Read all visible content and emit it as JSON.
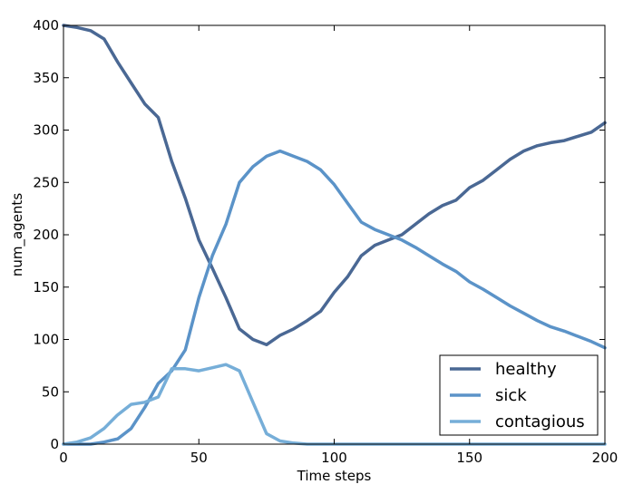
{
  "chart_data": {
    "type": "line",
    "title": "",
    "xlabel": "Time steps",
    "ylabel": "num_agents",
    "xlim": [
      0,
      200
    ],
    "ylim": [
      0,
      400
    ],
    "xticks": [
      0,
      50,
      100,
      150,
      200
    ],
    "yticks": [
      0,
      50,
      100,
      150,
      200,
      250,
      300,
      350,
      400
    ],
    "grid": false,
    "legend_position": "bottom-right",
    "x": [
      0,
      5,
      10,
      15,
      20,
      25,
      30,
      35,
      40,
      45,
      50,
      55,
      60,
      65,
      70,
      75,
      80,
      85,
      90,
      95,
      100,
      105,
      110,
      115,
      120,
      125,
      130,
      135,
      140,
      145,
      150,
      155,
      160,
      165,
      170,
      175,
      180,
      185,
      190,
      195,
      200
    ],
    "series": [
      {
        "name": "healthy",
        "color": "#4a6894",
        "values": [
          400,
          398,
          395,
          387,
          365,
          345,
          325,
          312,
          270,
          235,
          195,
          168,
          140,
          110,
          100,
          95,
          104,
          110,
          118,
          127,
          145,
          160,
          180,
          190,
          195,
          200,
          210,
          220,
          228,
          233,
          245,
          252,
          262,
          272,
          280,
          285,
          288,
          290,
          294,
          298,
          307
        ]
      },
      {
        "name": "sick",
        "color": "#5b93c8",
        "values": [
          0,
          0,
          0,
          2,
          5,
          15,
          35,
          58,
          70,
          90,
          140,
          180,
          210,
          250,
          265,
          275,
          280,
          275,
          270,
          262,
          248,
          230,
          212,
          205,
          200,
          195,
          188,
          180,
          172,
          165,
          155,
          148,
          140,
          132,
          125,
          118,
          112,
          108,
          103,
          98,
          92
        ]
      },
      {
        "name": "contagious",
        "color": "#76aed8",
        "values": [
          0,
          2,
          6,
          15,
          28,
          38,
          40,
          45,
          72,
          72,
          70,
          73,
          76,
          70,
          40,
          10,
          3,
          1,
          0,
          0,
          0,
          0,
          0,
          0,
          0,
          0,
          0,
          0,
          0,
          0,
          0,
          0,
          0,
          0,
          0,
          0,
          0,
          0,
          0,
          0,
          0
        ]
      }
    ]
  }
}
